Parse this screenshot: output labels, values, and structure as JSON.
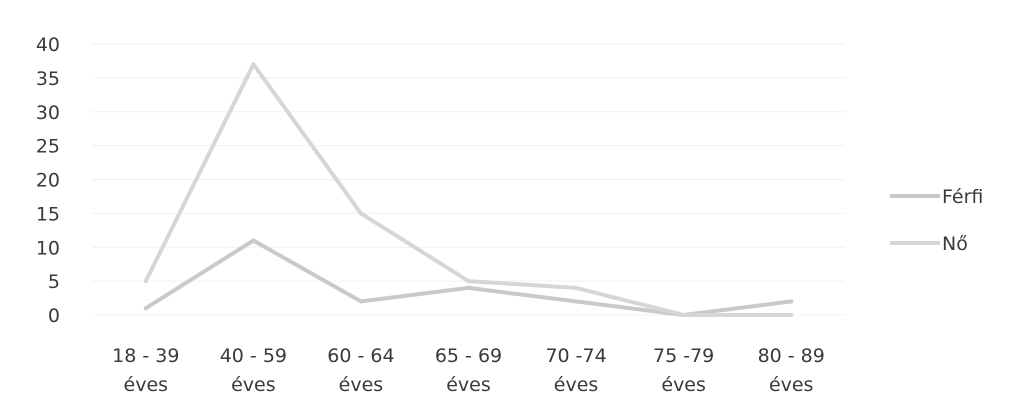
{
  "chart_data": {
    "type": "line",
    "categories": [
      [
        "18 - 39",
        "éves"
      ],
      [
        "40 - 59",
        "éves"
      ],
      [
        "60 - 64",
        "éves"
      ],
      [
        "65 - 69",
        "éves"
      ],
      [
        "70 -74",
        "éves"
      ],
      [
        "75 -79",
        "éves"
      ],
      [
        "80 - 89",
        "éves"
      ]
    ],
    "series": [
      {
        "name": "Férfi",
        "values": [
          1,
          11,
          2,
          4,
          2,
          0,
          2
        ],
        "color": "#c9c9c9"
      },
      {
        "name": "Nő",
        "values": [
          5,
          37,
          15,
          5,
          4,
          0,
          0
        ],
        "color": "#d6d6d6"
      }
    ],
    "y_ticks": [
      0,
      5,
      10,
      15,
      20,
      25,
      30,
      35,
      40
    ],
    "ylim": [
      0,
      40
    ],
    "grid": true,
    "legend_position": "right"
  }
}
